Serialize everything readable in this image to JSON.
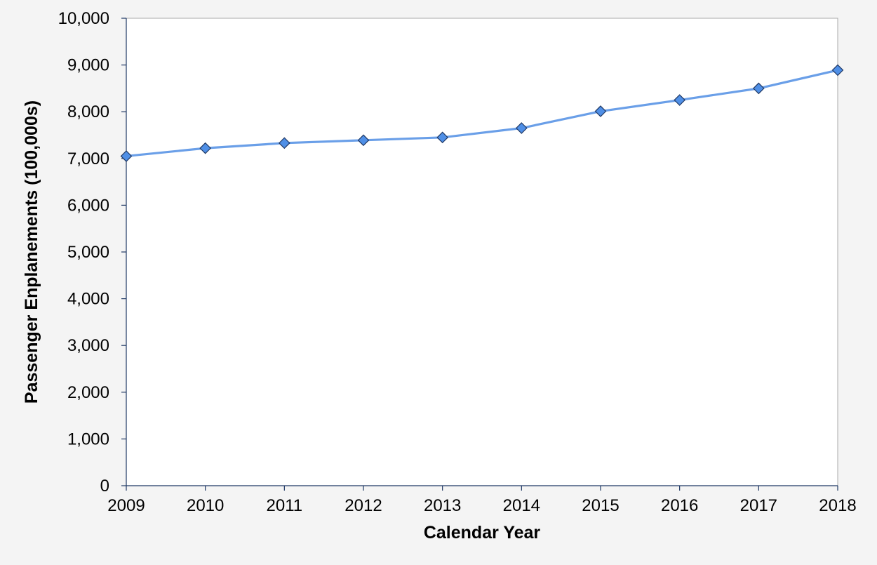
{
  "chart_data": {
    "type": "line",
    "xlabel": "Calendar Year",
    "ylabel": "Passenger Enplanements (100,000s)",
    "ylim": [
      0,
      10000
    ],
    "yticks": [
      "0",
      "1,000",
      "2,000",
      "3,000",
      "4,000",
      "5,000",
      "6,000",
      "7,000",
      "8,000",
      "9,000",
      "10,000"
    ],
    "grid": false,
    "categories": [
      "2009",
      "2010",
      "2011",
      "2012",
      "2013",
      "2014",
      "2015",
      "2016",
      "2017",
      "2018"
    ],
    "series": [
      {
        "values": [
          7050,
          7220,
          7330,
          7390,
          7450,
          7650,
          8010,
          8250,
          8500,
          8890
        ],
        "line_color": "#6a9fe8",
        "marker": "diamond",
        "marker_color": "#4f8fe6",
        "marker_edge_color": "#1f3864"
      }
    ],
    "colors": {
      "background": "#f4f4f4",
      "plot_background": "#ffffff",
      "axis": "#1f3864"
    }
  }
}
